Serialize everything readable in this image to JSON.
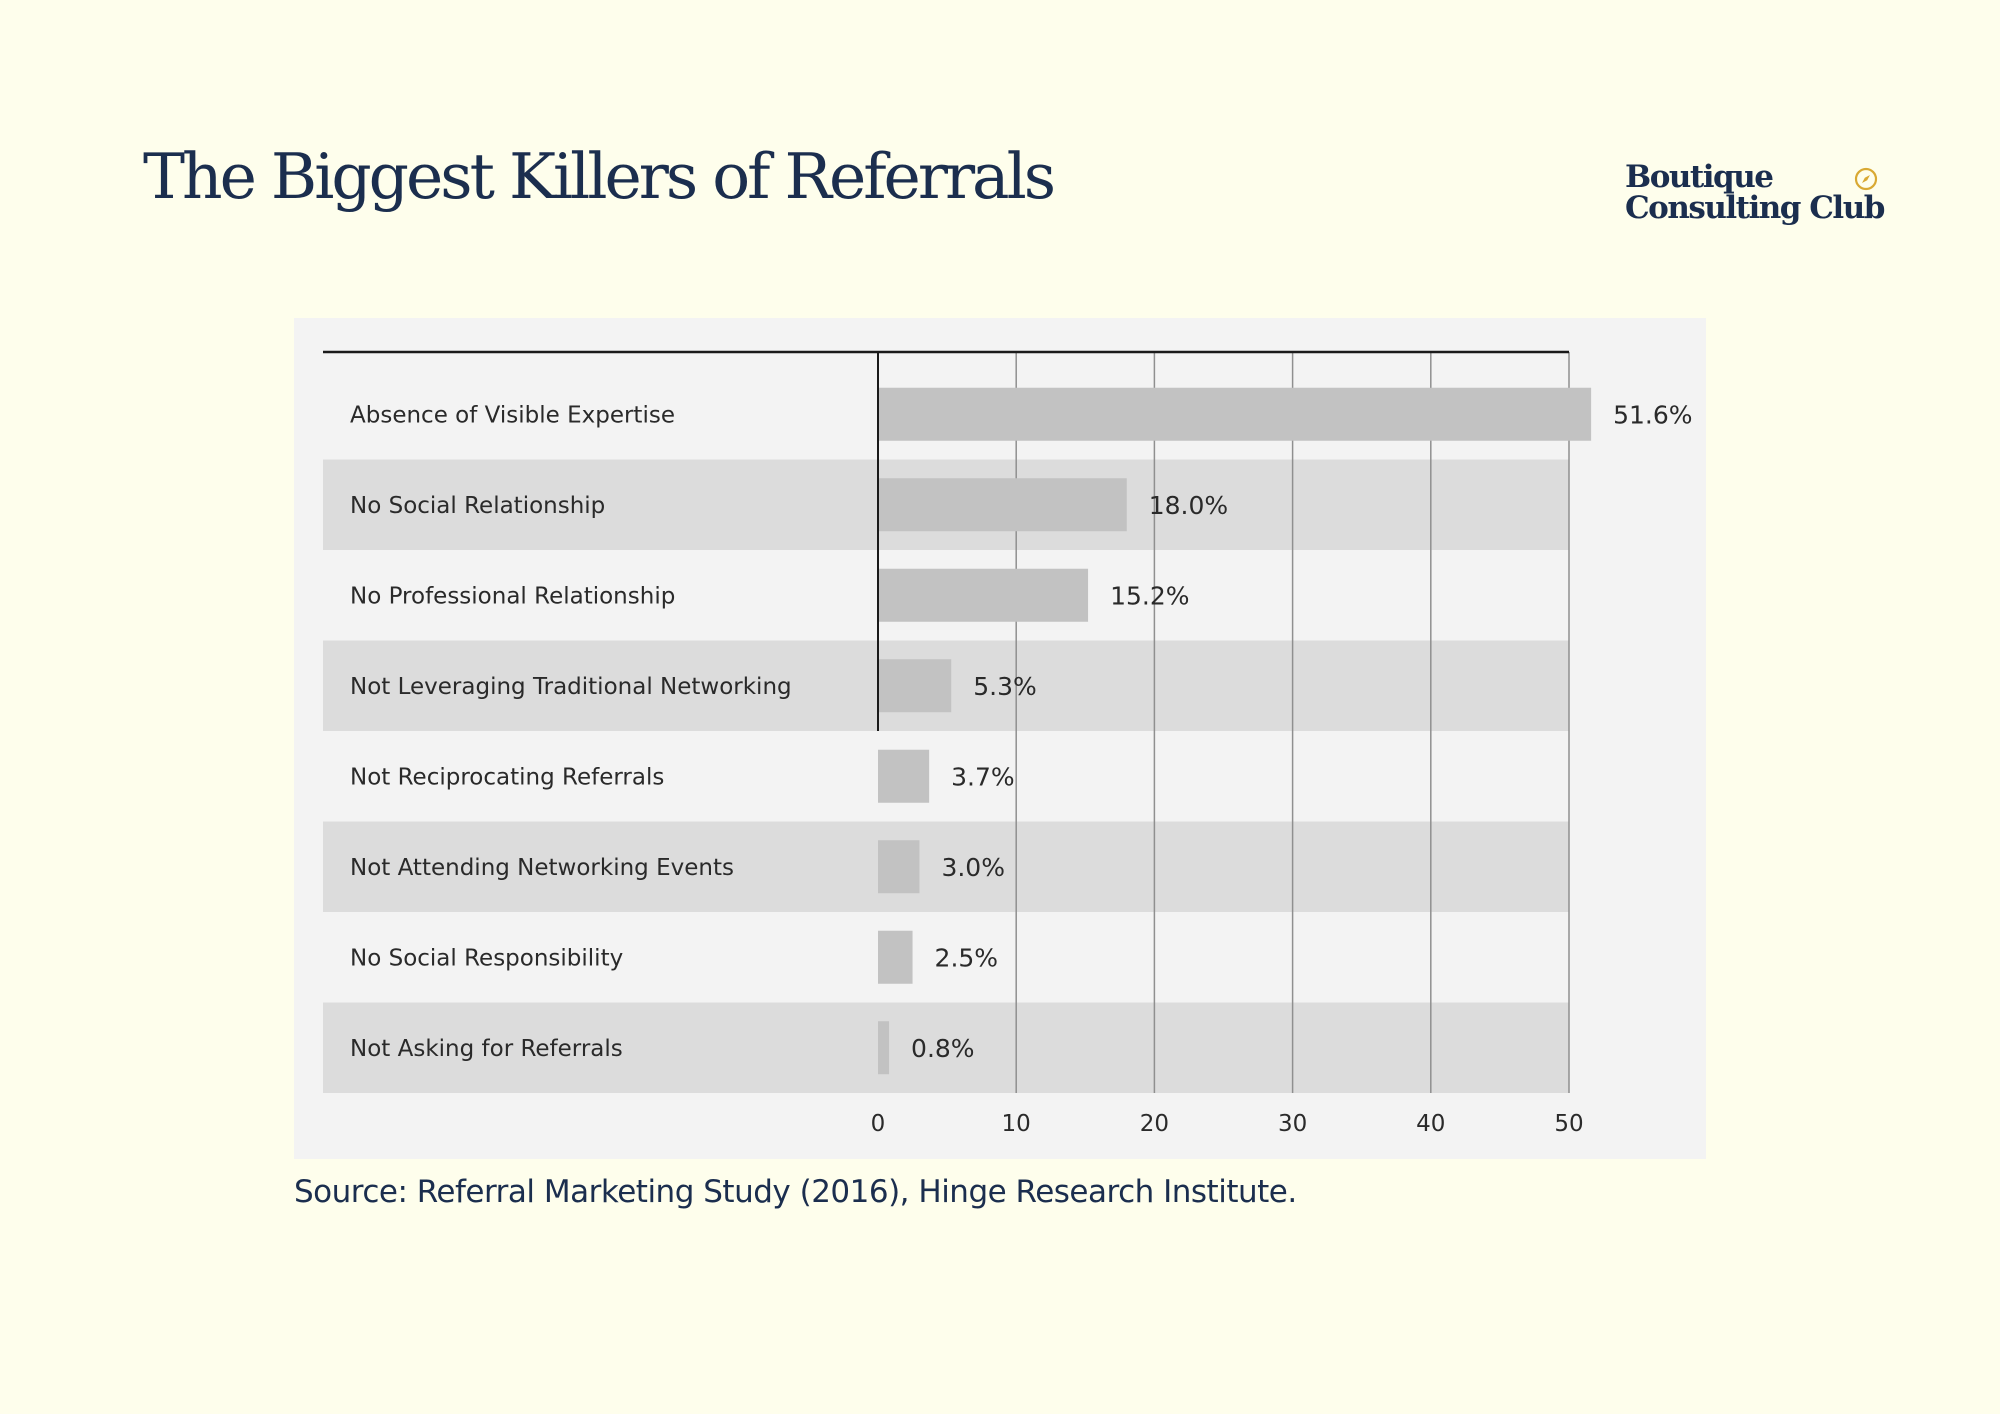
{
  "title": "The Biggest Killers of Referrals",
  "logo": {
    "line1": "Boutique",
    "line2": "Consulting Club",
    "icon": "compass-icon"
  },
  "source": "Source: Referral Marketing Study (2016),  Hinge Research Institute.",
  "colors": {
    "background": "#fefeec",
    "navy": "#1b2e4e",
    "panel": "#f3f3f3",
    "stripe": "#dcdcdc",
    "bar": "#c2c2c2",
    "accent": "#d9a933"
  },
  "chart_data": {
    "type": "bar",
    "orientation": "horizontal",
    "title": "",
    "xlabel": "",
    "ylabel": "",
    "categories": [
      "Absence of Visible Expertise",
      "No Social Relationship",
      "No Professional Relationship",
      "Not Leveraging Traditional Networking",
      "Not Reciprocating Referrals",
      "Not Attending Networking Events",
      "No Social Responsibility",
      "Not Asking for Referrals"
    ],
    "values": [
      51.6,
      18.0,
      15.2,
      5.3,
      3.7,
      3.0,
      2.5,
      0.8
    ],
    "value_labels": [
      "51.6%",
      "18.0%",
      "15.2%",
      "5.3%",
      "3.7%",
      "3.0%",
      "2.5%",
      "0.8%"
    ],
    "xlim": [
      0,
      50
    ],
    "xticks": [
      0,
      10,
      20,
      30,
      40,
      50
    ],
    "xtick_labels": [
      "0",
      "10",
      "20",
      "30",
      "40",
      "50"
    ],
    "grid": true,
    "legend": "none"
  }
}
